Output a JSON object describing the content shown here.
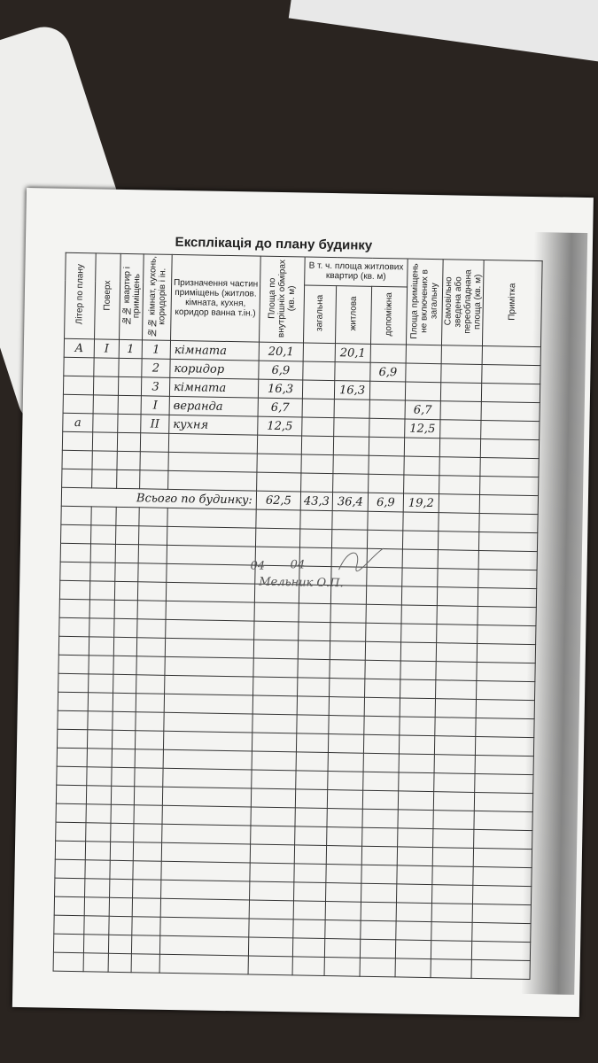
{
  "title": "Експлікація до плану будинку",
  "table": {
    "headers": [
      "Літер по плану",
      "Поверх",
      "№№ квартир і приміщень",
      "№№ кімнат, кухонь, коридорів і ін.",
      "Призначення частин приміщень (житлов. кімната, кухня, коридор ванна т.ін.)",
      "Площа по внутрішніх обмірах (кв. м)",
      "Площа приміщень не включених в загальну",
      "Самовільно зведена або переобладнана площа (кв. м)",
      "Примітка"
    ],
    "group_header": "В т. ч. площа житлових квартир (кв. м)",
    "sub_headers": [
      "загальна",
      "житлова",
      "допоміжна"
    ],
    "rows": [
      [
        "А",
        "І",
        "1",
        "1",
        "кімната",
        "20,1",
        null,
        "20,1",
        null,
        null,
        null,
        null
      ],
      [
        null,
        null,
        null,
        "2",
        "коридор",
        "6,9",
        null,
        null,
        "6,9",
        null,
        null,
        null
      ],
      [
        null,
        null,
        null,
        "3",
        "кімната",
        "16,3",
        null,
        "16,3",
        null,
        null,
        null,
        null
      ],
      [
        null,
        null,
        null,
        "І",
        "веранда",
        "6,7",
        null,
        null,
        null,
        "6,7",
        null,
        null
      ],
      [
        "а",
        null,
        null,
        "ІІ",
        "кухня",
        "12,5",
        null,
        null,
        null,
        "12,5",
        null,
        null
      ]
    ],
    "totals": {
      "label": "Всього по будинку:",
      "values": [
        "62,5",
        "43,3",
        "36,4",
        "6,9",
        "19,2"
      ]
    }
  },
  "signature": {
    "date_day": "04",
    "date_month": "04",
    "name": "Мельник О.П."
  }
}
